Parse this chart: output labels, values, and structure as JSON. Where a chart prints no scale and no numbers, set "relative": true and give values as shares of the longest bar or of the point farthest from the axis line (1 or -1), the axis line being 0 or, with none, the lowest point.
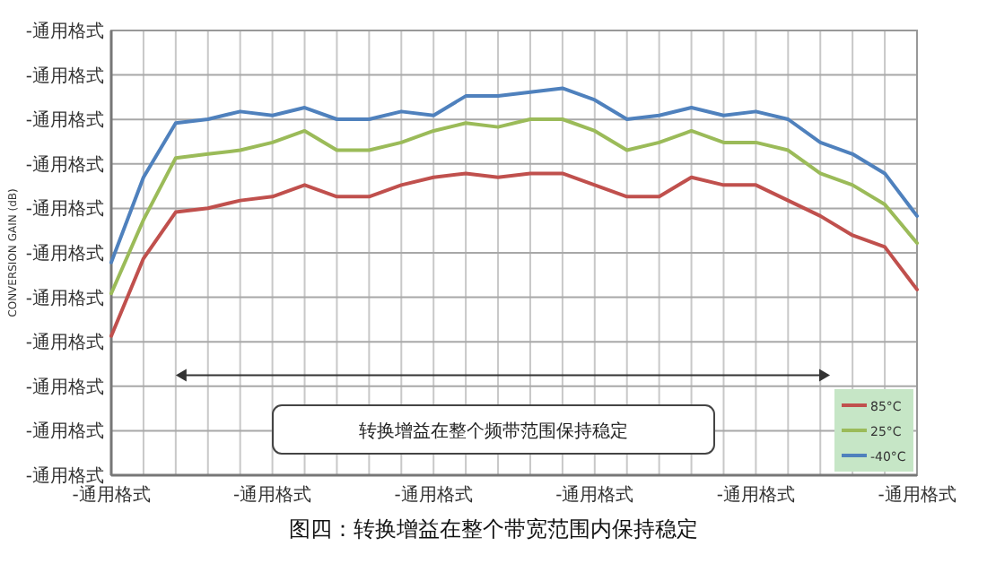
{
  "chart_data": {
    "type": "line",
    "ylabel": "CONVERSION GAIN (dB)",
    "relative": true,
    "categories": [
      "-通用格式",
      null,
      null,
      null,
      null,
      "-通用格式",
      null,
      null,
      null,
      null,
      "-通用格式",
      null,
      null,
      null,
      null,
      "-通用格式",
      null,
      null,
      null,
      null,
      "-通用格式",
      null,
      null,
      null,
      null,
      "-通用格式"
    ],
    "series": [
      {
        "name": "85°C",
        "color": "#c0504d",
        "values": [
          0.36,
          0.56,
          0.68,
          0.69,
          0.71,
          0.72,
          0.75,
          0.72,
          0.72,
          0.75,
          0.77,
          0.78,
          0.77,
          0.78,
          0.78,
          0.75,
          0.72,
          0.72,
          0.77,
          0.75,
          0.75,
          0.71,
          0.67,
          0.62,
          0.59,
          0.48
        ]
      },
      {
        "name": "25°C",
        "color": "#9bbb59",
        "values": [
          0.47,
          0.66,
          0.82,
          0.83,
          0.84,
          0.86,
          0.89,
          0.84,
          0.84,
          0.86,
          0.89,
          0.91,
          0.9,
          0.92,
          0.92,
          0.89,
          0.84,
          0.86,
          0.89,
          0.86,
          0.86,
          0.84,
          0.78,
          0.75,
          0.7,
          0.6
        ]
      },
      {
        "name": "-40°C",
        "color": "#4f81bd",
        "values": [
          0.55,
          0.77,
          0.91,
          0.92,
          0.94,
          0.93,
          0.95,
          0.92,
          0.92,
          0.94,
          0.93,
          0.98,
          0.98,
          0.99,
          1,
          0.97,
          0.92,
          0.93,
          0.95,
          0.93,
          0.94,
          0.92,
          0.86,
          0.83,
          0.78,
          0.67
        ]
      }
    ],
    "grid": true,
    "legend": "bottom right",
    "annotations": [
      "-通用格式",
      "-通用格式",
      "-通用格式",
      "-通用格式",
      "-通用格式",
      "-通用格式",
      "-通用格式",
      "-通用格式",
      "-通用格式",
      "-通用格式",
      "-通用格式",
      "转换增益在整个频带范围保持稳定",
      "图四：转换增益在整个带宽范围内保持稳定"
    ]
  }
}
